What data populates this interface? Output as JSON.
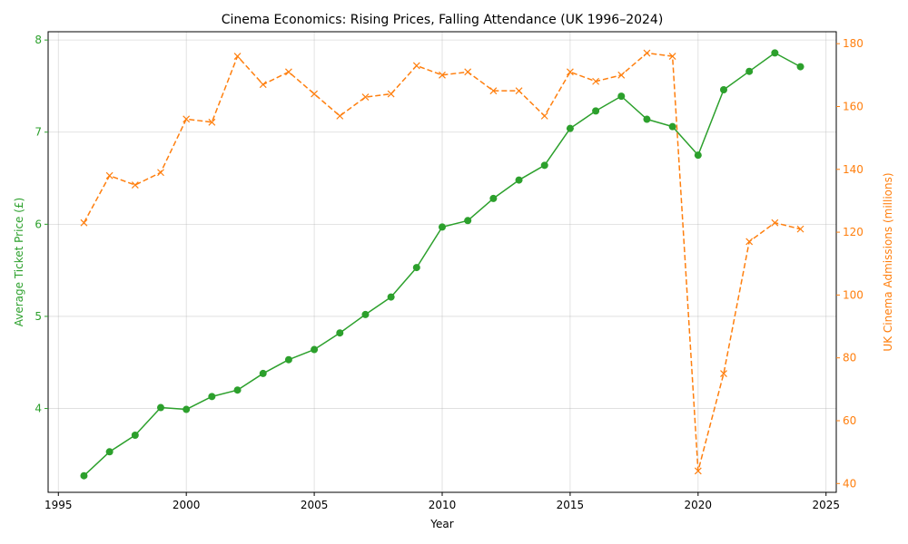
{
  "colors": {
    "price": "#2ca02c",
    "admissions": "#ff7f0e",
    "grid": "#b0b0b0",
    "axis": "#000000"
  },
  "chart_data": {
    "type": "line",
    "title": "Cinema Economics: Rising Prices, Falling Attendance (UK 1996–2024)",
    "xlabel": "Year",
    "ylabel_left": "Average Ticket Price (£)",
    "ylabel_right": "UK Cinema Admissions (millions)",
    "x": [
      1996,
      1997,
      1998,
      1999,
      2000,
      2001,
      2002,
      2003,
      2004,
      2005,
      2006,
      2007,
      2008,
      2009,
      2010,
      2011,
      2012,
      2013,
      2014,
      2015,
      2016,
      2017,
      2018,
      2019,
      2020,
      2021,
      2022,
      2023,
      2024
    ],
    "xlim": [
      1994.6,
      2025.4
    ],
    "xticks": [
      1995,
      2000,
      2005,
      2010,
      2015,
      2020,
      2025
    ],
    "ylim_left": [
      3.09,
      8.09
    ],
    "yticks_left": [
      4,
      5,
      6,
      7,
      8
    ],
    "ylim_right": [
      37.2,
      183.8
    ],
    "yticks_right": [
      40,
      60,
      80,
      100,
      120,
      140,
      160,
      180
    ],
    "grid": true,
    "series": [
      {
        "axis": "left",
        "marker": "circle",
        "line_style": "solid",
        "values": [
          3.27,
          3.53,
          3.71,
          4.01,
          3.99,
          4.13,
          4.2,
          4.38,
          4.53,
          4.64,
          4.82,
          5.02,
          5.21,
          5.53,
          5.97,
          6.04,
          6.28,
          6.48,
          6.64,
          7.04,
          7.23,
          7.39,
          7.14,
          7.06,
          6.75,
          7.46,
          7.66,
          7.86,
          7.71
        ]
      },
      {
        "axis": "right",
        "marker": "x",
        "line_style": "dashed",
        "values": [
          123,
          138,
          135,
          139,
          156,
          155,
          176,
          167,
          171,
          164,
          157,
          163,
          164,
          173,
          170,
          171,
          165,
          165,
          157,
          171,
          168,
          170,
          177,
          176,
          44,
          75,
          117,
          123,
          121
        ]
      }
    ]
  }
}
